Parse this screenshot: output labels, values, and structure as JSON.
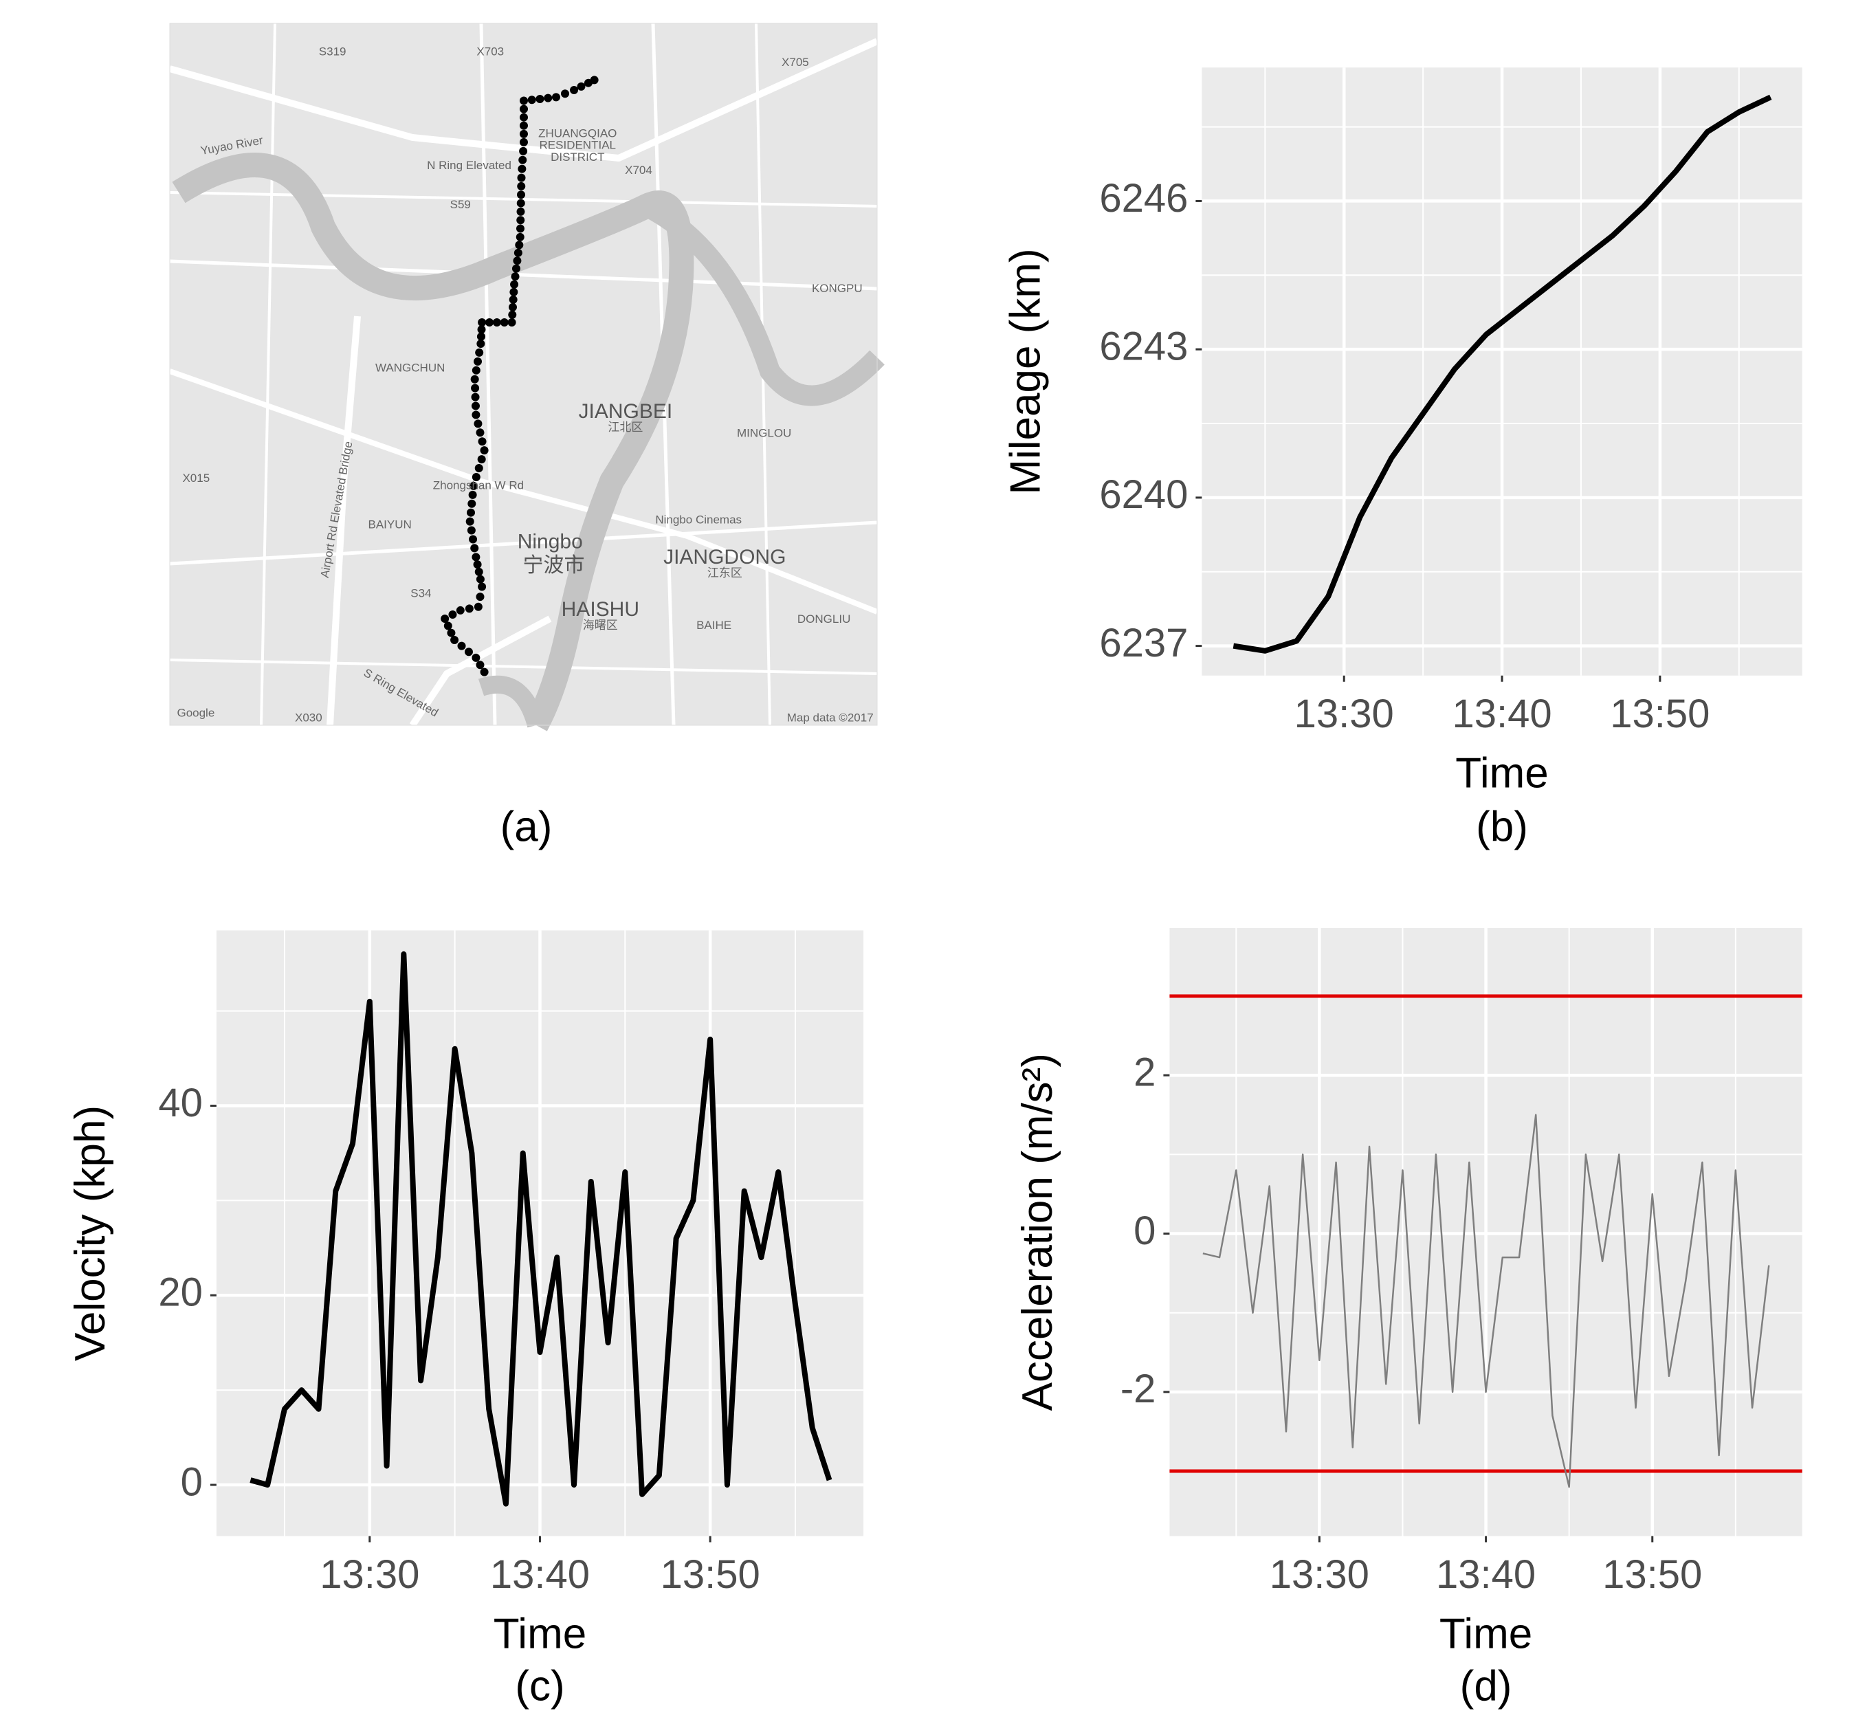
{
  "map": {
    "caption": "(a)",
    "labels": [
      "Ningbo",
      "宁波市",
      "JIANGBEI",
      "江北区",
      "HAISHU",
      "海曙区",
      "JIANGDONG",
      "江东区",
      "ZHUANGQIAO",
      "RESIDENTIAL",
      "DISTRICT",
      "WANGCHUN",
      "BAIYUN",
      "MINGLOU",
      "KONGPU",
      "BAIHE",
      "DONGLIU",
      "Ningbo Cinemas",
      "N Ring Elevated",
      "Yuyao River",
      "Airport Rd Elevated Bridge",
      "S Ring Elevated",
      "Zhongshan W Rd",
      "Google",
      "Map data ©2017",
      "S319",
      "X703",
      "X705",
      "X704",
      "S59",
      "X015",
      "S34",
      "X030"
    ]
  },
  "chart_data": [
    {
      "type": "line",
      "caption": "(b)",
      "x_label": "Time",
      "y_label": "Mileage (km)",
      "x": [
        "13:23",
        "13:25",
        "13:27",
        "13:29",
        "13:31",
        "13:33",
        "13:35",
        "13:37",
        "13:39",
        "13:41",
        "13:43",
        "13:45",
        "13:47",
        "13:49",
        "13:51",
        "13:53",
        "13:55",
        "13:57"
      ],
      "series": [
        {
          "color": "#000000",
          "values": [
            6237,
            6236.9,
            6237.1,
            6238,
            6239.6,
            6240.8,
            6241.7,
            6242.6,
            6243.3,
            6243.8,
            6244.3,
            6244.8,
            6245.3,
            6245.9,
            6246.6,
            6247.4,
            6247.8,
            6248.1
          ]
        }
      ],
      "xlim": [
        "13:21",
        "13:59"
      ],
      "xticks": [
        "13:30",
        "13:40",
        "13:50"
      ],
      "ylim": [
        6236.4,
        6248.7
      ],
      "yticks": [
        6237,
        6240,
        6243,
        6246
      ],
      "grid": true
    },
    {
      "type": "line",
      "caption": "(c)",
      "x_label": "Time",
      "y_label": "Velocity (kph)",
      "x": [
        "13:23",
        "13:24",
        "13:25",
        "13:26",
        "13:27",
        "13:28",
        "13:29",
        "13:30",
        "13:31",
        "13:32",
        "13:33",
        "13:34",
        "13:35",
        "13:36",
        "13:37",
        "13:38",
        "13:39",
        "13:40",
        "13:41",
        "13:42",
        "13:43",
        "13:44",
        "13:45",
        "13:46",
        "13:47",
        "13:48",
        "13:49",
        "13:50",
        "13:51",
        "13:52",
        "13:53",
        "13:54",
        "13:55",
        "13:56",
        "13:57"
      ],
      "series": [
        {
          "color": "#000000",
          "values": [
            0.5,
            0,
            8,
            10,
            8,
            31,
            36,
            51,
            2,
            56,
            11,
            24,
            46,
            35,
            8,
            -2,
            35,
            14,
            24,
            0,
            32,
            15,
            33,
            -1,
            1,
            26,
            30,
            47,
            0,
            31,
            24,
            33,
            19,
            6,
            0.5
          ]
        }
      ],
      "xlim": [
        "13:21",
        "13:59"
      ],
      "xticks": [
        "13:30",
        "13:40",
        "13:50"
      ],
      "ylim": [
        -5.4,
        58.5
      ],
      "yticks": [
        0,
        20,
        40
      ],
      "grid": true
    },
    {
      "type": "line",
      "caption": "(d)",
      "x_label": "Time",
      "y_label": "Acceleration (m/s²)",
      "x": [
        "13:23",
        "13:24",
        "13:25",
        "13:26",
        "13:27",
        "13:28",
        "13:29",
        "13:30",
        "13:31",
        "13:32",
        "13:33",
        "13:34",
        "13:35",
        "13:36",
        "13:37",
        "13:38",
        "13:39",
        "13:40",
        "13:41",
        "13:42",
        "13:43",
        "13:44",
        "13:45",
        "13:46",
        "13:47",
        "13:48",
        "13:49",
        "13:50",
        "13:51",
        "13:52",
        "13:53",
        "13:54",
        "13:55",
        "13:56",
        "13:57"
      ],
      "series": [
        {
          "color": "#7f7f7f",
          "values": [
            -0.25,
            -0.3,
            0.8,
            -1,
            0.6,
            -2.5,
            1,
            -1.6,
            0.9,
            -2.7,
            1.1,
            -1.9,
            0.8,
            -2.4,
            1,
            -2,
            0.9,
            -2,
            -0.3,
            -0.3,
            1.5,
            -2.3,
            -3.2,
            1,
            -0.35,
            1,
            -2.2,
            0.5,
            -1.8,
            -0.6,
            0.9,
            -2.8,
            0.8,
            -2.2,
            -0.4
          ]
        }
      ],
      "hlines": [
        3,
        -3
      ],
      "hline_color": "#e00000",
      "xlim": [
        "13:21",
        "13:59"
      ],
      "xticks": [
        "13:30",
        "13:40",
        "13:50"
      ],
      "ylim": [
        -3.82,
        3.86
      ],
      "yticks": [
        -2,
        0,
        2
      ],
      "grid": true
    }
  ]
}
